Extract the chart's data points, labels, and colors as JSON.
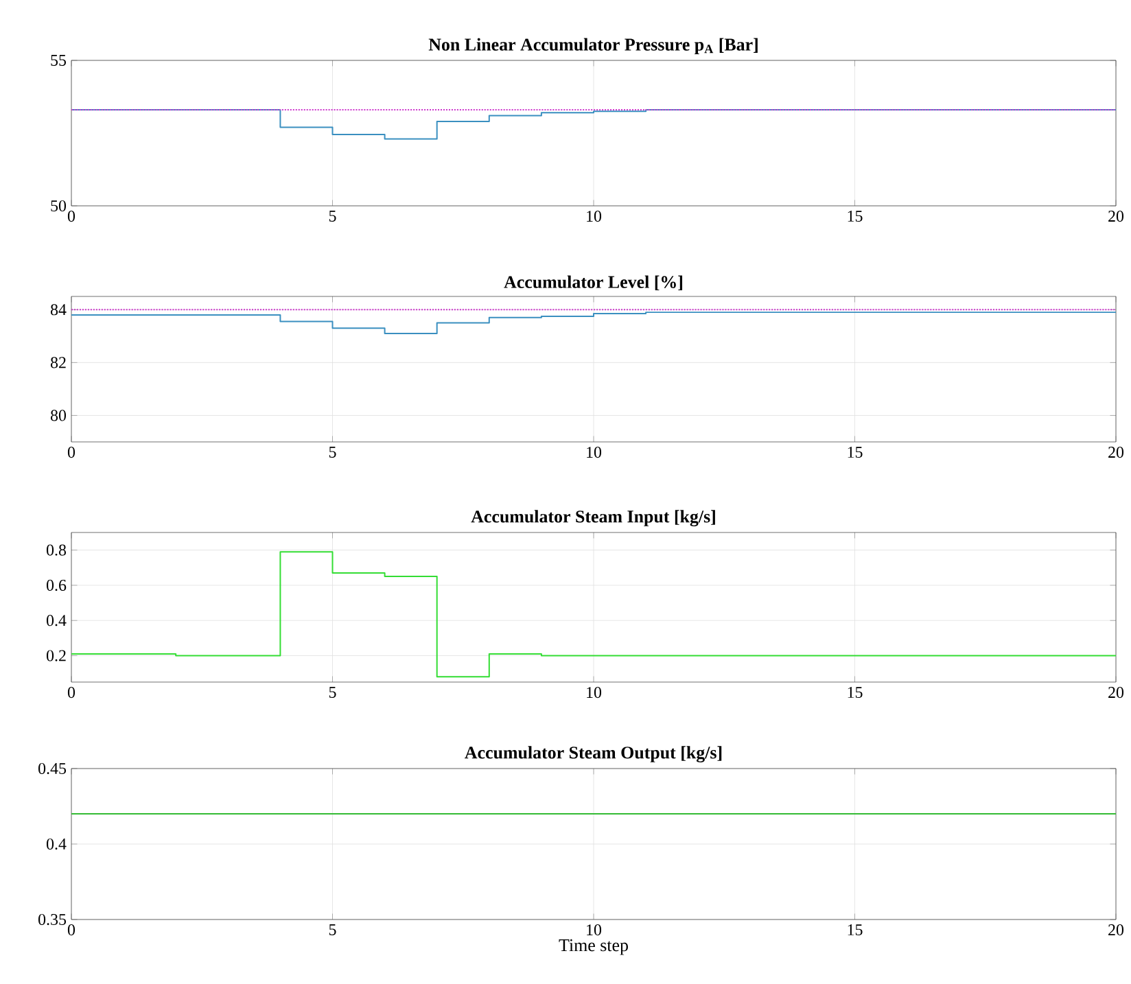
{
  "chart_data": [
    {
      "type": "step",
      "title": "Non Linear Accumulator Pressure p$_{A}$ [Bar]",
      "x": [
        0,
        1,
        2,
        3,
        4,
        5,
        6,
        7,
        8,
        9,
        10,
        11,
        12,
        13,
        14,
        15,
        16,
        17,
        18,
        19,
        20
      ],
      "xlim": [
        0,
        20
      ],
      "xticks": [
        0,
        5,
        10,
        15,
        20
      ],
      "ylim": [
        50,
        55
      ],
      "yticks": [
        50,
        55
      ],
      "grid": true,
      "series": [
        {
          "color": "#3a8fc0",
          "line_style": "solid",
          "values": [
            53.3,
            53.3,
            53.3,
            53.3,
            52.7,
            52.45,
            52.3,
            52.9,
            53.1,
            53.2,
            53.25,
            53.3,
            53.3,
            53.3,
            53.3,
            53.3,
            53.3,
            53.3,
            53.3,
            53.3,
            53.3
          ]
        },
        {
          "color": "#cc33cc",
          "line_style": "dotted",
          "values": [
            53.3,
            53.3,
            53.3,
            53.3,
            53.3,
            53.3,
            53.3,
            53.3,
            53.3,
            53.3,
            53.3,
            53.3,
            53.3,
            53.3,
            53.3,
            53.3,
            53.3,
            53.3,
            53.3,
            53.3,
            53.3
          ]
        }
      ]
    },
    {
      "type": "step",
      "title": "Accumulator Level [%]",
      "x": [
        0,
        1,
        2,
        3,
        4,
        5,
        6,
        7,
        8,
        9,
        10,
        11,
        12,
        13,
        14,
        15,
        16,
        17,
        18,
        19,
        20
      ],
      "xlim": [
        0,
        20
      ],
      "xticks": [
        0,
        5,
        10,
        15,
        20
      ],
      "ylim": [
        79,
        84.5
      ],
      "yticks": [
        80,
        82,
        84
      ],
      "grid": true,
      "series": [
        {
          "color": "#3a8fc0",
          "line_style": "solid",
          "values": [
            83.8,
            83.8,
            83.8,
            83.8,
            83.55,
            83.3,
            83.1,
            83.5,
            83.7,
            83.75,
            83.85,
            83.9,
            83.9,
            83.9,
            83.9,
            83.9,
            83.9,
            83.9,
            83.9,
            83.9,
            83.9
          ]
        },
        {
          "color": "#cc33cc",
          "line_style": "dotted",
          "values": [
            84,
            84,
            84,
            84,
            84,
            84,
            84,
            84,
            84,
            84,
            84,
            84,
            84,
            84,
            84,
            84,
            84,
            84,
            84,
            84,
            84
          ]
        }
      ]
    },
    {
      "type": "step",
      "title": "Accumulator Steam Input [kg/s]",
      "x": [
        0,
        1,
        2,
        3,
        4,
        5,
        6,
        7,
        8,
        9,
        10,
        11,
        12,
        13,
        14,
        15,
        16,
        17,
        18,
        19,
        20
      ],
      "xlim": [
        0,
        20
      ],
      "xticks": [
        0,
        5,
        10,
        15,
        20
      ],
      "ylim": [
        0.05,
        0.9
      ],
      "yticks": [
        0.2,
        0.4,
        0.6,
        0.8
      ],
      "grid": true,
      "series": [
        {
          "color": "#33dd33",
          "line_style": "solid",
          "values": [
            0.21,
            0.21,
            0.2,
            0.2,
            0.79,
            0.67,
            0.65,
            0.08,
            0.21,
            0.2,
            0.2,
            0.2,
            0.2,
            0.2,
            0.2,
            0.2,
            0.2,
            0.2,
            0.2,
            0.2,
            0.2
          ]
        }
      ]
    },
    {
      "type": "step",
      "title": "Accumulator Steam Output [kg/s]",
      "xlabel": "Time step",
      "x": [
        0,
        1,
        2,
        3,
        4,
        5,
        6,
        7,
        8,
        9,
        10,
        11,
        12,
        13,
        14,
        15,
        16,
        17,
        18,
        19,
        20
      ],
      "xlim": [
        0,
        20
      ],
      "xticks": [
        0,
        5,
        10,
        15,
        20
      ],
      "ylim": [
        0.35,
        0.45
      ],
      "yticks": [
        0.35,
        0.4,
        0.45
      ],
      "grid": true,
      "series": [
        {
          "color": "#33bb33",
          "line_style": "solid",
          "values": [
            0.42,
            0.42,
            0.42,
            0.42,
            0.42,
            0.42,
            0.42,
            0.42,
            0.42,
            0.42,
            0.42,
            0.42,
            0.42,
            0.42,
            0.42,
            0.42,
            0.42,
            0.42,
            0.42,
            0.42,
            0.42
          ]
        }
      ]
    }
  ]
}
